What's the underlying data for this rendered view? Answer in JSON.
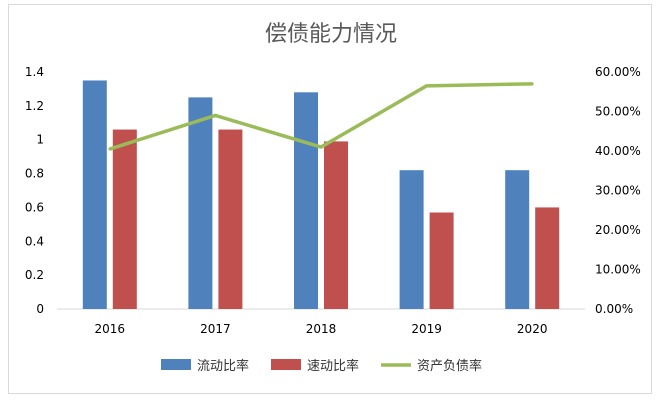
{
  "chart_data": {
    "type": "bar+line",
    "title": "偿债能力情况",
    "categories": [
      "2016",
      "2017",
      "2018",
      "2019",
      "2020"
    ],
    "series": [
      {
        "name": "流动比率",
        "type": "bar",
        "axis": "left",
        "color": "#4f81bd",
        "values": [
          1.35,
          1.25,
          1.28,
          0.82,
          0.82
        ]
      },
      {
        "name": "速动比率",
        "type": "bar",
        "axis": "left",
        "color": "#c0504d",
        "values": [
          1.06,
          1.06,
          0.99,
          0.57,
          0.6
        ]
      },
      {
        "name": "资产负债率",
        "type": "line",
        "axis": "right",
        "color": "#9bbb59",
        "values": [
          0.405,
          0.49,
          0.41,
          0.565,
          0.57
        ]
      }
    ],
    "y_left": {
      "min": 0,
      "max": 1.4,
      "step": 0.2,
      "ticks": [
        "0",
        "0.2",
        "0.4",
        "0.6",
        "0.8",
        "1",
        "1.2",
        "1.4"
      ]
    },
    "y_right": {
      "min": 0,
      "max": 0.6,
      "step": 0.1,
      "ticks": [
        "0.00%",
        "10.00%",
        "20.00%",
        "30.00%",
        "40.00%",
        "50.00%",
        "60.00%"
      ]
    },
    "grid": false,
    "legend": "bottom"
  }
}
